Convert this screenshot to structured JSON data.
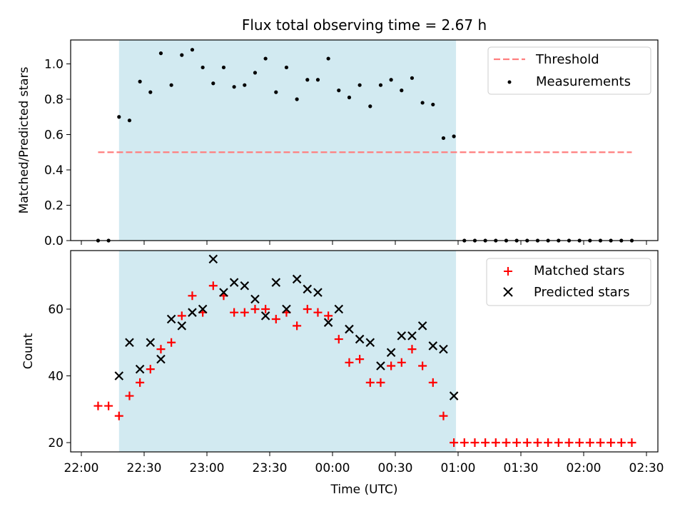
{
  "chart_data": [
    {
      "type": "scatter",
      "title": "Flux total observing time = 2.67 h",
      "xlabel": "",
      "ylabel": "Matched/Predicted stars",
      "xlim": [
        "22:00",
        "02:30"
      ],
      "ylim": [
        0,
        1.14
      ],
      "yticks": [
        "0.0",
        "0.2",
        "0.4",
        "0.6",
        "0.8",
        "1.0"
      ],
      "observing_window": {
        "start": "22:18",
        "end": "00:59",
        "color": "#add8e6"
      },
      "threshold": {
        "name": "Threshold",
        "value": 0.5,
        "x_start": "22:08",
        "x_end": "02:23",
        "color": "#ff7f7f",
        "style": "dashed"
      },
      "legend_position": "upper right",
      "series": [
        {
          "name": "Measurements",
          "color": "#000000",
          "marker": "dot",
          "x": [
            "22:08",
            "22:13",
            "22:18",
            "22:23",
            "22:28",
            "22:33",
            "22:38",
            "22:43",
            "22:48",
            "22:53",
            "22:58",
            "23:03",
            "23:08",
            "23:13",
            "23:18",
            "23:23",
            "23:28",
            "23:33",
            "23:38",
            "23:43",
            "23:48",
            "23:53",
            "23:58",
            "00:03",
            "00:08",
            "00:13",
            "00:18",
            "00:23",
            "00:28",
            "00:33",
            "00:38",
            "00:43",
            "00:48",
            "00:53",
            "00:58",
            "01:03",
            "01:08",
            "01:13",
            "01:18",
            "01:23",
            "01:28",
            "01:33",
            "01:38",
            "01:43",
            "01:48",
            "01:53",
            "01:58",
            "02:03",
            "02:08",
            "02:13",
            "02:18",
            "02:23"
          ],
          "y": [
            0.0,
            0.0,
            0.7,
            0.68,
            0.9,
            0.84,
            1.06,
            0.88,
            1.05,
            1.08,
            0.98,
            0.89,
            0.98,
            0.87,
            0.88,
            0.95,
            1.03,
            0.84,
            0.98,
            0.8,
            0.91,
            0.91,
            1.03,
            0.85,
            0.81,
            0.88,
            0.76,
            0.88,
            0.91,
            0.85,
            0.92,
            0.78,
            0.77,
            0.58,
            0.59,
            0.0,
            0.0,
            0.0,
            0.0,
            0.0,
            0.0,
            0.0,
            0.0,
            0.0,
            0.0,
            0.0,
            0.0,
            0.0,
            0.0,
            0.0,
            0.0,
            0.0
          ]
        }
      ]
    },
    {
      "type": "scatter",
      "title": "",
      "xlabel": "Time (UTC)",
      "ylabel": "Count",
      "xlim": [
        "22:00",
        "02:30"
      ],
      "ylim": [
        17.5,
        77
      ],
      "yticks": [
        "20",
        "40",
        "60"
      ],
      "xticks": [
        "22:00",
        "22:30",
        "23:00",
        "23:30",
        "00:00",
        "00:30",
        "01:00",
        "01:30",
        "02:00",
        "02:30"
      ],
      "observing_window": {
        "start": "22:18",
        "end": "00:59",
        "color": "#add8e6"
      },
      "legend_position": "upper right",
      "series": [
        {
          "name": "Matched stars",
          "color": "#ff0000",
          "marker": "plus",
          "x": [
            "22:08",
            "22:13",
            "22:18",
            "22:23",
            "22:28",
            "22:33",
            "22:38",
            "22:43",
            "22:48",
            "22:53",
            "22:58",
            "23:03",
            "23:08",
            "23:13",
            "23:18",
            "23:23",
            "23:28",
            "23:33",
            "23:38",
            "23:43",
            "23:48",
            "23:53",
            "23:58",
            "00:03",
            "00:08",
            "00:13",
            "00:18",
            "00:23",
            "00:28",
            "00:33",
            "00:38",
            "00:43",
            "00:48",
            "00:53",
            "00:58",
            "01:03",
            "01:08",
            "01:13",
            "01:18",
            "01:23",
            "01:28",
            "01:33",
            "01:38",
            "01:43",
            "01:48",
            "01:53",
            "01:58",
            "02:03",
            "02:08",
            "02:13",
            "02:18",
            "02:23"
          ],
          "y": [
            31,
            31,
            28,
            34,
            38,
            42,
            48,
            50,
            58,
            64,
            59,
            67,
            64,
            59,
            59,
            60,
            60,
            57,
            59,
            55,
            60,
            59,
            58,
            51,
            44,
            45,
            38,
            38,
            43,
            44,
            48,
            43,
            38,
            28,
            20,
            20,
            20,
            20,
            20,
            20,
            20,
            20,
            20,
            20,
            20,
            20,
            20,
            20,
            20,
            20,
            20,
            20
          ]
        },
        {
          "name": "Predicted stars",
          "color": "#000000",
          "marker": "x",
          "x": [
            "22:18",
            "22:23",
            "22:28",
            "22:33",
            "22:38",
            "22:43",
            "22:48",
            "22:53",
            "22:58",
            "23:03",
            "23:08",
            "23:13",
            "23:18",
            "23:23",
            "23:28",
            "23:33",
            "23:38",
            "23:43",
            "23:48",
            "23:53",
            "23:58",
            "00:03",
            "00:08",
            "00:13",
            "00:18",
            "00:23",
            "00:28",
            "00:33",
            "00:38",
            "00:43",
            "00:48",
            "00:53",
            "00:58"
          ],
          "y": [
            40,
            50,
            42,
            50,
            45,
            57,
            55,
            59,
            60,
            75,
            65,
            68,
            67,
            63,
            58,
            68,
            60,
            69,
            66,
            65,
            56,
            60,
            54,
            51,
            50,
            43,
            47,
            52,
            52,
            55,
            49,
            48,
            34
          ]
        }
      ]
    }
  ]
}
